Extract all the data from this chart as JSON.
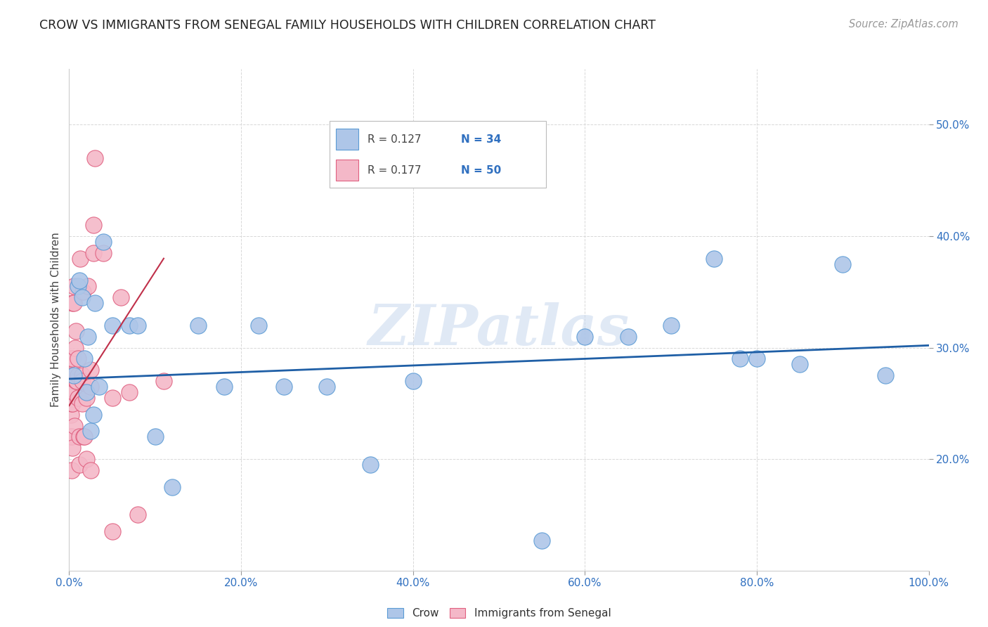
{
  "title": "CROW VS IMMIGRANTS FROM SENEGAL FAMILY HOUSEHOLDS WITH CHILDREN CORRELATION CHART",
  "source": "Source: ZipAtlas.com",
  "ylabel": "Family Households with Children",
  "xlim": [
    0,
    1.0
  ],
  "ylim": [
    0.1,
    0.55
  ],
  "yticks": [
    0.2,
    0.3,
    0.4,
    0.5
  ],
  "xticks": [
    0.0,
    0.2,
    0.4,
    0.6,
    0.8,
    1.0
  ],
  "xtick_labels": [
    "0.0%",
    "20.0%",
    "40.0%",
    "60.0%",
    "80.0%",
    "100.0%"
  ],
  "ytick_labels": [
    "20.0%",
    "30.0%",
    "40.0%",
    "50.0%"
  ],
  "legend_r_crow": "R = 0.127",
  "legend_n_crow": "N = 34",
  "legend_r_senegal": "R = 0.177",
  "legend_n_senegal": "N = 50",
  "crow_color": "#aec6e8",
  "crow_edge_color": "#5b9bd5",
  "senegal_color": "#f4b8c8",
  "senegal_edge_color": "#e06080",
  "trend_crow_color": "#1f5fa6",
  "trend_senegal_color": "#c0304a",
  "watermark": "ZIPatlas",
  "crow_x": [
    0.005,
    0.01,
    0.012,
    0.015,
    0.018,
    0.02,
    0.022,
    0.025,
    0.028,
    0.03,
    0.035,
    0.04,
    0.05,
    0.07,
    0.08,
    0.1,
    0.12,
    0.15,
    0.18,
    0.22,
    0.25,
    0.3,
    0.35,
    0.4,
    0.55,
    0.6,
    0.65,
    0.7,
    0.75,
    0.78,
    0.8,
    0.85,
    0.9,
    0.95
  ],
  "crow_y": [
    0.275,
    0.355,
    0.36,
    0.345,
    0.29,
    0.26,
    0.31,
    0.225,
    0.24,
    0.34,
    0.265,
    0.395,
    0.32,
    0.32,
    0.32,
    0.22,
    0.175,
    0.32,
    0.265,
    0.32,
    0.265,
    0.265,
    0.195,
    0.27,
    0.127,
    0.31,
    0.31,
    0.32,
    0.38,
    0.29,
    0.29,
    0.285,
    0.375,
    0.275
  ],
  "senegal_x": [
    0.002,
    0.002,
    0.002,
    0.002,
    0.003,
    0.003,
    0.003,
    0.003,
    0.003,
    0.004,
    0.004,
    0.004,
    0.004,
    0.004,
    0.005,
    0.005,
    0.005,
    0.006,
    0.007,
    0.008,
    0.008,
    0.009,
    0.01,
    0.01,
    0.01,
    0.012,
    0.012,
    0.013,
    0.015,
    0.015,
    0.015,
    0.016,
    0.017,
    0.018,
    0.02,
    0.02,
    0.022,
    0.025,
    0.025,
    0.025,
    0.028,
    0.028,
    0.03,
    0.04,
    0.05,
    0.05,
    0.06,
    0.07,
    0.08,
    0.11
  ],
  "senegal_y": [
    0.27,
    0.29,
    0.24,
    0.22,
    0.275,
    0.265,
    0.25,
    0.22,
    0.19,
    0.34,
    0.29,
    0.26,
    0.25,
    0.21,
    0.355,
    0.34,
    0.26,
    0.23,
    0.3,
    0.315,
    0.27,
    0.27,
    0.275,
    0.29,
    0.255,
    0.22,
    0.195,
    0.38,
    0.275,
    0.27,
    0.25,
    0.35,
    0.22,
    0.22,
    0.255,
    0.2,
    0.355,
    0.28,
    0.265,
    0.19,
    0.385,
    0.41,
    0.47,
    0.385,
    0.135,
    0.255,
    0.345,
    0.26,
    0.15,
    0.27
  ],
  "crow_trend_x": [
    0.0,
    1.0
  ],
  "crow_trend_y": [
    0.272,
    0.302
  ],
  "senegal_trend_x": [
    0.0,
    0.11
  ],
  "senegal_trend_y": [
    0.248,
    0.38
  ],
  "background_color": "#ffffff",
  "grid_color": "#d8d8d8"
}
